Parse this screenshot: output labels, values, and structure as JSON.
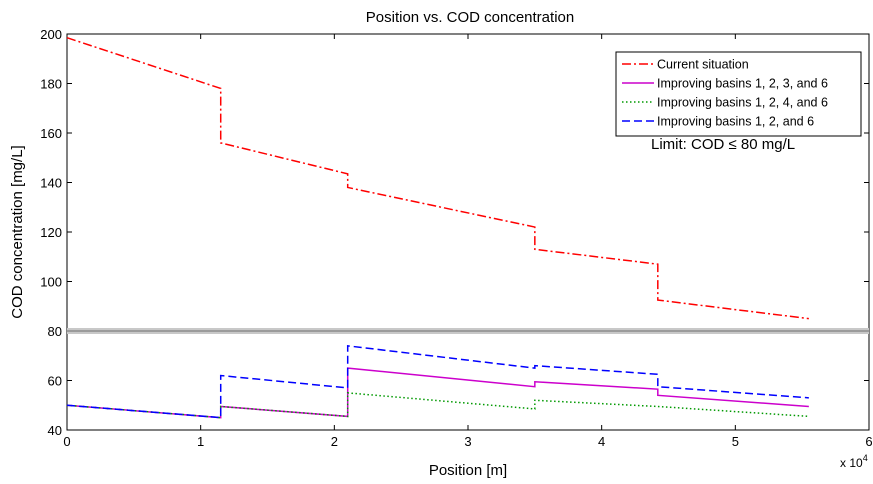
{
  "chart_data": {
    "type": "line",
    "title": "Position vs. COD concentration",
    "xlabel": "Position [m]",
    "ylabel": "COD concentration [mg/L]",
    "x_multiplier_label": "x 10",
    "x_multiplier_exponent": "4",
    "xlim": [
      0,
      60000
    ],
    "ylim": [
      40,
      200
    ],
    "x_ticks": [
      0,
      10000,
      20000,
      30000,
      40000,
      50000,
      60000
    ],
    "x_tick_labels": [
      "0",
      "1",
      "2",
      "3",
      "4",
      "5",
      "6"
    ],
    "y_ticks": [
      40,
      60,
      80,
      100,
      120,
      140,
      160,
      180,
      200
    ],
    "y_tick_labels": [
      "40",
      "60",
      "80",
      "100",
      "120",
      "140",
      "160",
      "180",
      "200"
    ],
    "grid": false,
    "legend_position": "top-right",
    "limit_line": {
      "y": 80,
      "color": "#a0a0a0"
    },
    "annotation": "Limit: COD ≤ 80 mg/L",
    "series": [
      {
        "name": "Current situation",
        "color": "#ff0000",
        "style": "dashdot",
        "x": [
          0,
          11500,
          11500,
          21000,
          21000,
          35000,
          35000,
          44200,
          44200,
          55500
        ],
        "y": [
          198.5,
          178,
          156,
          143.5,
          138,
          122,
          113,
          107,
          92.5,
          85
        ]
      },
      {
        "name": "Improving basins 1, 2, 3, and 6",
        "color": "#cc00cc",
        "style": "solid",
        "x": [
          0,
          11500,
          11500,
          21000,
          21000,
          35000,
          35000,
          44200,
          44200,
          55500
        ],
        "y": [
          50,
          45,
          49.5,
          45.5,
          65,
          57.5,
          59.5,
          56.5,
          54,
          49.5
        ]
      },
      {
        "name": "Improving basins 1, 2, 4, and 6",
        "color": "#009900",
        "style": "dotted",
        "x": [
          0,
          11500,
          11500,
          21000,
          21000,
          35000,
          35000,
          44200,
          44200,
          55500
        ],
        "y": [
          50,
          45,
          49.5,
          45.5,
          55,
          48.5,
          52,
          49.5,
          49.5,
          45.5
        ]
      },
      {
        "name": "Improving basins 1, 2, and 6",
        "color": "#0000ff",
        "style": "dashed",
        "x": [
          0,
          11500,
          11500,
          21000,
          21000,
          35000,
          35000,
          44200,
          44200,
          55500
        ],
        "y": [
          50,
          45,
          62,
          57,
          74,
          65,
          66,
          62.5,
          57.5,
          53
        ]
      }
    ]
  }
}
